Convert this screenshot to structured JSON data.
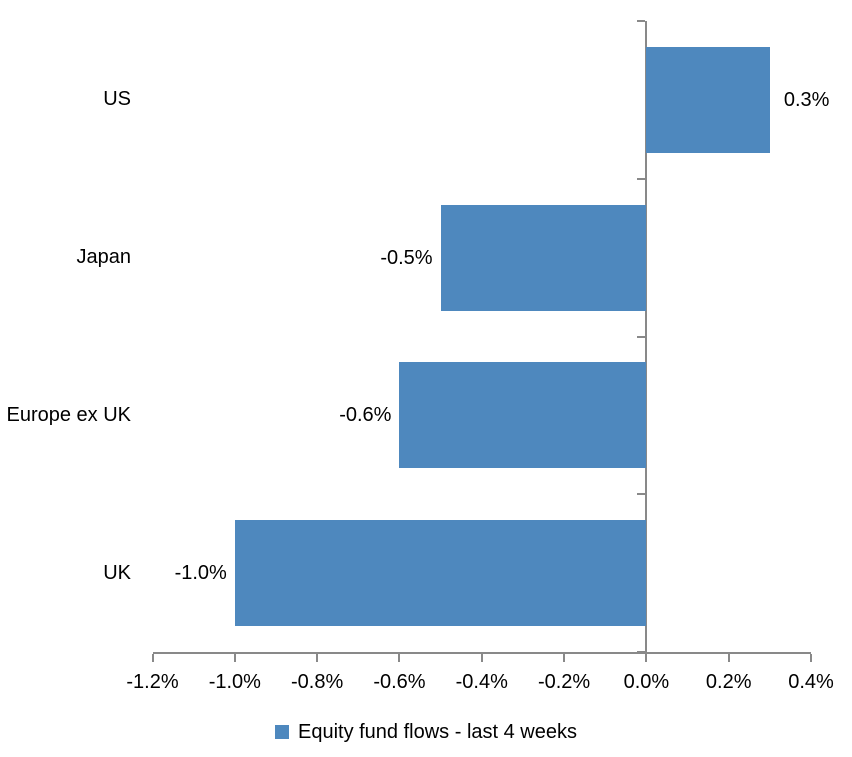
{
  "chart_data": {
    "type": "bar",
    "orientation": "horizontal",
    "title": "",
    "categories": [
      "US",
      "Japan",
      "Europe ex UK",
      "UK"
    ],
    "values": [
      0.3,
      -0.5,
      -0.6,
      -1.0
    ],
    "unit": "%",
    "data_labels": [
      "0.3%",
      "-0.5%",
      "-0.6%",
      "-1.0%"
    ],
    "xlabel": "",
    "ylabel": "",
    "xlim": [
      -1.2,
      0.4
    ],
    "x_ticks": [
      -1.2,
      -1.0,
      -0.8,
      -0.6,
      -0.4,
      -0.2,
      0.0,
      0.2,
      0.4
    ],
    "x_tick_labels": [
      "-1.2%",
      "-1.0%",
      "-0.8%",
      "-0.6%",
      "-0.4%",
      "-0.2%",
      "0.0%",
      "0.2%",
      "0.4%"
    ],
    "grid": false,
    "legend": "Equity fund flows - last 4 weeks",
    "legend_position": "bottom-center",
    "bar_color": "#4E88BE",
    "axis_color": "#898989",
    "text_color": "#000000",
    "background_color": "#FFFFFF"
  }
}
